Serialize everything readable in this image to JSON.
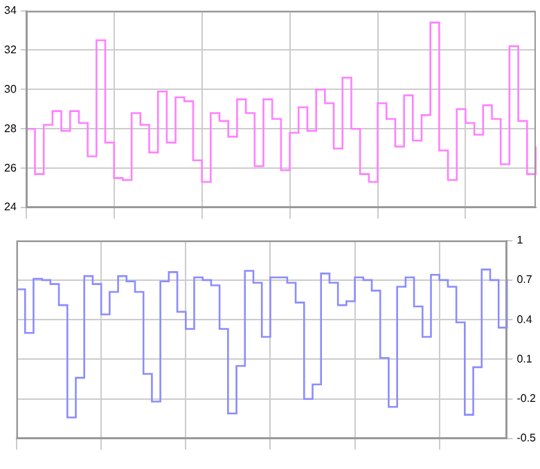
{
  "chart_data": [
    {
      "type": "step",
      "categories": [
        null,
        null,
        null,
        null,
        null,
        null,
        null,
        null,
        null,
        null,
        null,
        null,
        null,
        null,
        null,
        null,
        null,
        null,
        null,
        null,
        null,
        null,
        null,
        null,
        null,
        null,
        null,
        null,
        null,
        null,
        null,
        null,
        null,
        null,
        null,
        null,
        null,
        null,
        null,
        null,
        null,
        null,
        null,
        null,
        null,
        null,
        null,
        null,
        null,
        null,
        null,
        null,
        null,
        null,
        null,
        null,
        null,
        null,
        null
      ],
      "series": [
        {
          "color": "#ff80ff",
          "values": [
            28.0,
            25.7,
            28.2,
            28.9,
            27.9,
            28.9,
            28.3,
            26.6,
            32.5,
            27.3,
            25.5,
            25.4,
            28.8,
            28.2,
            26.8,
            29.9,
            27.3,
            29.6,
            29.4,
            26.4,
            25.3,
            28.8,
            28.4,
            27.6,
            29.5,
            28.8,
            26.1,
            29.5,
            28.5,
            25.9,
            27.8,
            29.1,
            27.9,
            30.0,
            29.3,
            27.0,
            30.6,
            28.0,
            25.7,
            25.3,
            29.3,
            28.5,
            27.1,
            29.7,
            27.4,
            28.7,
            33.4,
            26.9,
            25.4,
            29.0,
            28.3,
            27.7,
            29.2,
            28.5,
            26.2,
            32.2,
            28.4,
            25.7,
            27.1
          ]
        }
      ],
      "ylim": [
        24,
        34
      ],
      "yticks": [
        24,
        26,
        28,
        30,
        32,
        34
      ],
      "grid": true,
      "tick_labels": "y"
    },
    {
      "type": "step",
      "categories": [
        null,
        null,
        null,
        null,
        null,
        null,
        null,
        null,
        null,
        null,
        null,
        null,
        null,
        null,
        null,
        null,
        null,
        null,
        null,
        null,
        null,
        null,
        null,
        null,
        null,
        null,
        null,
        null,
        null,
        null,
        null,
        null,
        null,
        null,
        null,
        null,
        null,
        null,
        null,
        null,
        null,
        null,
        null,
        null,
        null,
        null,
        null,
        null,
        null,
        null,
        null,
        null,
        null,
        null,
        null,
        null,
        null,
        null,
        null
      ],
      "series": [
        {
          "color": "#8c8cff",
          "values": [
            0.63,
            0.3,
            0.71,
            0.7,
            0.67,
            0.51,
            -0.34,
            -0.04,
            0.73,
            0.67,
            0.44,
            0.61,
            0.73,
            0.69,
            0.61,
            -0.01,
            -0.22,
            0.69,
            0.76,
            0.46,
            0.33,
            0.72,
            0.7,
            0.66,
            0.33,
            -0.31,
            0.05,
            0.77,
            0.68,
            0.27,
            0.72,
            0.72,
            0.68,
            0.53,
            -0.2,
            -0.09,
            0.75,
            0.68,
            0.51,
            0.54,
            0.72,
            0.7,
            0.62,
            0.11,
            -0.26,
            0.65,
            0.72,
            0.5,
            0.27,
            0.74,
            0.7,
            0.65,
            0.38,
            -0.32,
            0.04,
            0.78,
            0.7,
            0.34,
            0.71
          ]
        }
      ],
      "ylim": [
        -0.5,
        1
      ],
      "yticks": [
        -0.5,
        -0.2,
        0.1,
        0.4,
        0.7,
        1
      ],
      "grid": true,
      "tick_labels": "y"
    }
  ]
}
